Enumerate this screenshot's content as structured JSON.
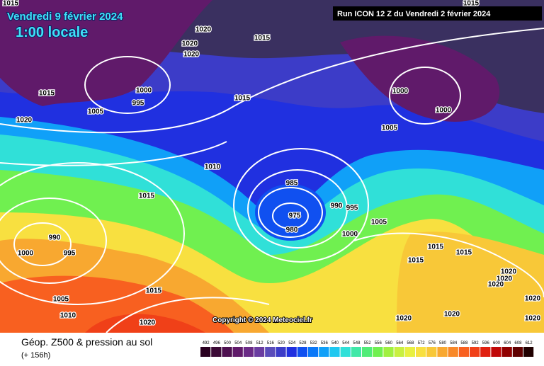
{
  "header": {
    "title": "Vendredi 9 février 2024",
    "time": "1:00 locale",
    "run": "Run ICON 12 Z du Vendredi 2 février 2024",
    "copyright": "Copyright © 2024 Meteociel.fr"
  },
  "footer": {
    "caption": "Géop. Z500 & pression au sol",
    "lead": "(+ 156h)"
  },
  "legend": {
    "values": [
      492,
      496,
      500,
      504,
      508,
      512,
      516,
      520,
      524,
      528,
      532,
      536,
      540,
      544,
      548,
      552,
      556,
      560,
      564,
      568,
      572,
      576,
      580,
      584,
      588,
      592,
      596,
      600,
      604,
      608,
      612
    ],
    "colors": [
      "#2a0020",
      "#3c0a36",
      "#4e1050",
      "#601a6a",
      "#6a2a86",
      "#6a3ca0",
      "#5a4cba",
      "#3c3cc8",
      "#2030e0",
      "#1050f0",
      "#0a78f8",
      "#10a0f8",
      "#20c8f0",
      "#30e0d8",
      "#40e8a8",
      "#50ec78",
      "#70f050",
      "#a0f040",
      "#c8f040",
      "#e8f040",
      "#f8e040",
      "#f8c838",
      "#f8a830",
      "#f88828",
      "#f86020",
      "#f04018",
      "#e02010",
      "#c00808",
      "#900000",
      "#600000",
      "#200000"
    ]
  },
  "isobars": [
    "1015",
    "1020",
    "1015",
    "1020",
    "1020",
    "1015",
    "1000",
    "995",
    "1005",
    "1015",
    "1020",
    "1000",
    "1000",
    "1005",
    "1010",
    "1015",
    "985",
    "975",
    "980",
    "990",
    "995",
    "1000",
    "1005",
    "990",
    "995",
    "1000",
    "1015",
    "1015",
    "1015",
    "1020",
    "1020",
    "1020",
    "1005",
    "1015",
    "1010",
    "1020",
    "1020",
    "1020",
    "1020",
    "1020",
    "1015"
  ]
}
